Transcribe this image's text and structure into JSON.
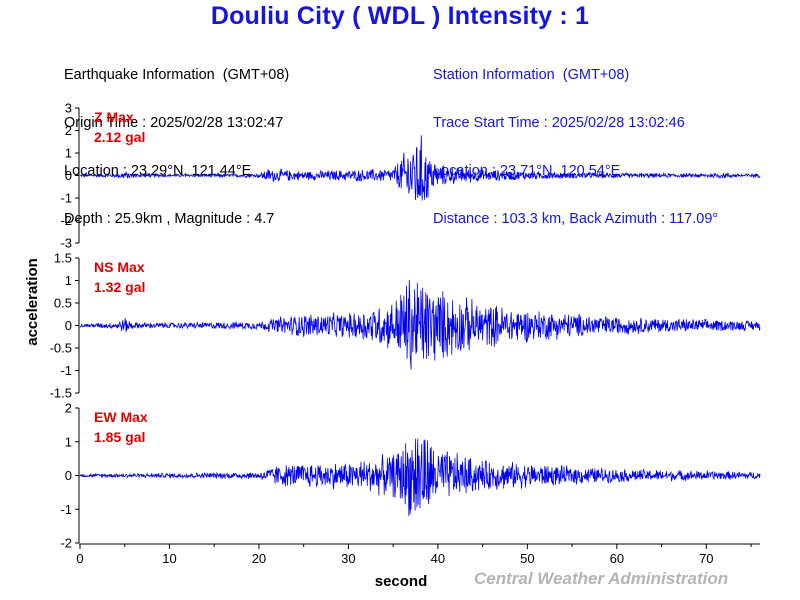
{
  "title": "Douliu City ( WDL ) Intensity : 1",
  "earthquake": {
    "heading": "Earthquake Information  (GMT+08)",
    "origin_time": "Origin Time : 2025/02/28 13:02:47",
    "location": "Location : 23.29°N, 121.44°E",
    "depth_magnitude": "Depth : 25.9km , Magnitude : 4.7"
  },
  "station": {
    "heading": "Station Information  (GMT+08)",
    "trace_start": "Trace Start Time : 2025/02/28 13:02:46",
    "location": "Location : 23.71°N, 120.54°E",
    "distance": "Distance : 103.3 km, Back Azimuth : 117.09°"
  },
  "credit": "Central Weather Administration",
  "colors": {
    "title": "#1515e0",
    "trace": "#0000ee",
    "max_label": "#e00000",
    "credit": "#b4b4b4"
  },
  "chart_data": {
    "type": "line",
    "xlabel": "second",
    "ylabel": "acceleration",
    "xlim": [
      0,
      76
    ],
    "xticks": [
      0,
      10,
      20,
      30,
      40,
      50,
      60,
      70
    ],
    "grid": false,
    "series": [
      {
        "name": "Z",
        "max_label": "Z Max",
        "max_value": "2.12 gal",
        "ylim": [
          -3,
          3
        ],
        "yticks": [
          3,
          2,
          1,
          0,
          -1,
          -2,
          -3
        ],
        "envelope": [
          [
            0,
            0.06
          ],
          [
            4,
            0.1
          ],
          [
            5,
            0.22
          ],
          [
            6,
            0.1
          ],
          [
            10,
            0.06
          ],
          [
            20,
            0.1
          ],
          [
            21,
            0.35
          ],
          [
            25,
            0.22
          ],
          [
            30,
            0.28
          ],
          [
            35,
            0.35
          ],
          [
            36,
            1.0
          ],
          [
            37,
            1.6
          ],
          [
            38,
            2.12
          ],
          [
            39,
            1.1
          ],
          [
            40,
            0.55
          ],
          [
            42,
            0.4
          ],
          [
            45,
            0.3
          ],
          [
            50,
            0.22
          ],
          [
            55,
            0.15
          ],
          [
            60,
            0.12
          ],
          [
            70,
            0.1
          ],
          [
            72,
            0.16
          ],
          [
            73,
            0.1
          ],
          [
            76,
            0.1
          ]
        ]
      },
      {
        "name": "NS",
        "max_label": "NS Max",
        "max_value": "1.32 gal",
        "ylim": [
          -1.5,
          1.5
        ],
        "yticks": [
          1.5,
          1,
          0.5,
          0,
          -0.5,
          -1,
          -1.5
        ],
        "envelope": [
          [
            0,
            0.04
          ],
          [
            4,
            0.08
          ],
          [
            5,
            0.2
          ],
          [
            6,
            0.08
          ],
          [
            10,
            0.07
          ],
          [
            20,
            0.1
          ],
          [
            22,
            0.2
          ],
          [
            25,
            0.3
          ],
          [
            30,
            0.3
          ],
          [
            35,
            0.6
          ],
          [
            37,
            1.32
          ],
          [
            38,
            1.2
          ],
          [
            40,
            0.9
          ],
          [
            45,
            0.55
          ],
          [
            50,
            0.4
          ],
          [
            55,
            0.3
          ],
          [
            60,
            0.22
          ],
          [
            70,
            0.15
          ],
          [
            76,
            0.12
          ]
        ]
      },
      {
        "name": "EW",
        "max_label": "EW Max",
        "max_value": "1.85 gal",
        "ylim": [
          -2,
          2
        ],
        "yticks": [
          2,
          1,
          0,
          -1,
          -2
        ],
        "envelope": [
          [
            0,
            0.05
          ],
          [
            10,
            0.08
          ],
          [
            20,
            0.12
          ],
          [
            22,
            0.35
          ],
          [
            25,
            0.4
          ],
          [
            30,
            0.45
          ],
          [
            35,
            0.7
          ],
          [
            37,
            1.4
          ],
          [
            38,
            1.85
          ],
          [
            39,
            1.2
          ],
          [
            40,
            0.9
          ],
          [
            45,
            0.5
          ],
          [
            50,
            0.4
          ],
          [
            55,
            0.3
          ],
          [
            60,
            0.22
          ],
          [
            70,
            0.15
          ],
          [
            76,
            0.12
          ]
        ]
      }
    ]
  }
}
